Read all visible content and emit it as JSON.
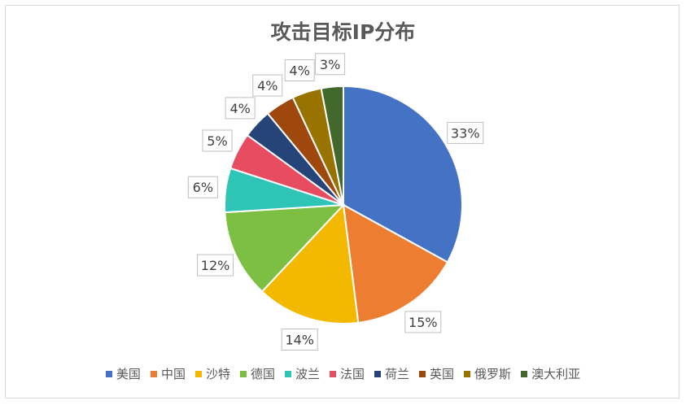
{
  "chart_data": {
    "type": "pie",
    "title": "攻击目标IP分布",
    "categories": [
      "美国",
      "中国",
      "沙特",
      "德国",
      "波兰",
      "法国",
      "荷兰",
      "英国",
      "俄罗斯",
      "澳大利亚"
    ],
    "values": [
      33,
      15,
      14,
      12,
      6,
      5,
      4,
      4,
      4,
      3
    ],
    "labels": [
      "33%",
      "15%",
      "14%",
      "12%",
      "6%",
      "5%",
      "4%",
      "4%",
      "4%",
      "3%"
    ],
    "colors": [
      "#4472c4",
      "#ed7d31",
      "#f2b900",
      "#7cbf42",
      "#2ec4b6",
      "#e84c61",
      "#264478",
      "#9e480e",
      "#997300",
      "#43682b"
    ],
    "start_angle": "top, clockwise",
    "legend_position": "bottom"
  }
}
